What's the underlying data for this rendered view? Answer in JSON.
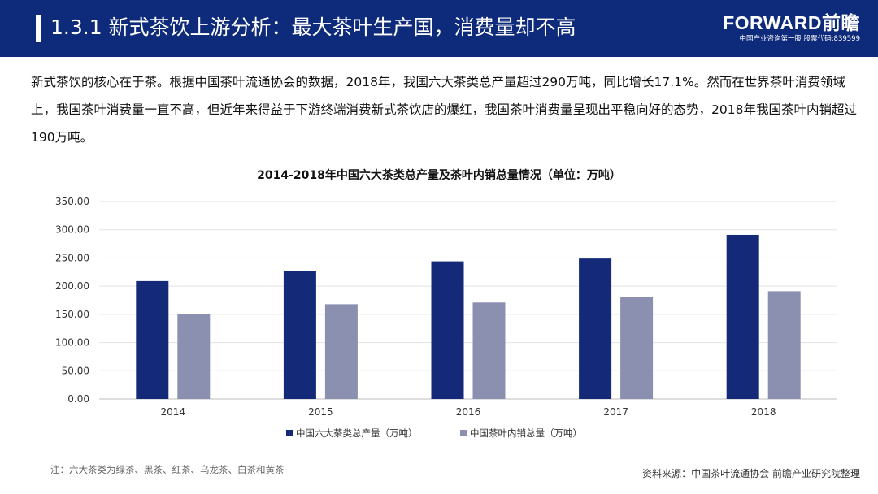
{
  "header": {
    "title": "1.3.1 新式茶饮上游分析：最大茶叶生产国，消费量却不高",
    "logo_main": "FORWARD前瞻",
    "logo_sub": "中国产业咨询第一股 股票代码:839599"
  },
  "intro": {
    "text": "新式茶饮的核心在于茶。根据中国茶叶流通协会的数据，2018年，我国六大茶类总产量超过290万吨，同比增长17.1%。然而在世界茶叶消费领域上，我国茶叶消费量一直不高，但近年来得益于下游终端消费新式茶饮店的爆红，我国茶叶消费量呈现出平稳向好的态势，2018年我国茶叶内销超过190万吨。"
  },
  "chart_data": {
    "type": "bar",
    "title": "2014-2018年中国六大茶类总产量及茶叶内销总量情况（单位：万吨）",
    "categories": [
      "2014",
      "2015",
      "2016",
      "2017",
      "2018"
    ],
    "series": [
      {
        "name": "中国六大茶类总产量（万吨）",
        "values": [
          209,
          227,
          244,
          249,
          291
        ],
        "color": "#142a78"
      },
      {
        "name": "中国茶叶内销总量（万吨）",
        "values": [
          150,
          168,
          171,
          181,
          191
        ],
        "color": "#8b90b0"
      }
    ],
    "ylim": [
      0,
      350
    ],
    "yticks": [
      "0.00",
      "50.00",
      "100.00",
      "150.00",
      "200.00",
      "250.00",
      "300.00",
      "350.00"
    ],
    "grid": true,
    "legend": "bottom"
  },
  "footnote": "注：六大茶类为绿茶、黑茶、红茶、乌龙茶、白茶和黄茶",
  "source": "资料来源：中国茶叶流通协会 前瞻产业研究院整理",
  "colors": {
    "header_bg": "#0e2a7a"
  }
}
